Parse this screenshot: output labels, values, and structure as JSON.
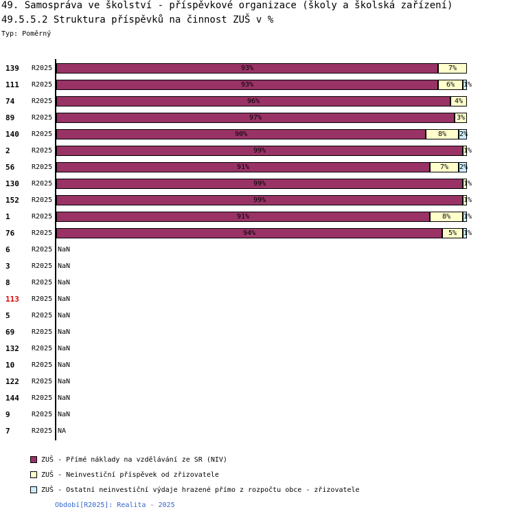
{
  "header": {
    "title1": "49. Samospráva ve školství - příspěvkové organizace (školy a školská zařízení)",
    "title2": "49.5.5.2 Struktura příspěvků na činnost ZUŠ v %",
    "type_label": "Typ: Poměrný"
  },
  "chart_data": {
    "type": "bar",
    "orientation": "horizontal",
    "stacked": true,
    "normalized_percent": true,
    "title": "49.5.5.2 Struktura příspěvků na činnost ZUŠ v %",
    "xlim": [
      0,
      100
    ],
    "period": "R2025",
    "series": [
      {
        "name": "ZUŠ - Přímé náklady na vzdělávání ze SR (NIV)",
        "color": "#993366"
      },
      {
        "name": "ZUŠ - Neinvestiční příspěvek od zřizovatele",
        "color": "#ffffcc"
      },
      {
        "name": "ZUŠ - Ostatní neinvestiční výdaje hrazené přímo z rozpočtu obce - zřizovatele",
        "color": "#cceeff"
      }
    ],
    "rows": [
      {
        "label": "139",
        "period": "R2025",
        "values": [
          93,
          7,
          0
        ],
        "value_labels": [
          "93%",
          "7%",
          ""
        ]
      },
      {
        "label": "111",
        "period": "R2025",
        "values": [
          93,
          6,
          1
        ],
        "value_labels": [
          "93%",
          "6%",
          "1%"
        ]
      },
      {
        "label": "74",
        "period": "R2025",
        "values": [
          96,
          4,
          0
        ],
        "value_labels": [
          "96%",
          "4%",
          ""
        ]
      },
      {
        "label": "89",
        "period": "R2025",
        "values": [
          97,
          3,
          0
        ],
        "value_labels": [
          "97%",
          "3%",
          ""
        ]
      },
      {
        "label": "140",
        "period": "R2025",
        "values": [
          90,
          8,
          2
        ],
        "value_labels": [
          "90%",
          "8%",
          "2%"
        ]
      },
      {
        "label": "2",
        "period": "R2025",
        "values": [
          99,
          1,
          0
        ],
        "value_labels": [
          "99%",
          "1%",
          ""
        ]
      },
      {
        "label": "56",
        "period": "R2025",
        "values": [
          91,
          7,
          2
        ],
        "value_labels": [
          "91%",
          "7%",
          "2%"
        ]
      },
      {
        "label": "130",
        "period": "R2025",
        "values": [
          99,
          1,
          0
        ],
        "value_labels": [
          "99%",
          "1%",
          ""
        ]
      },
      {
        "label": "152",
        "period": "R2025",
        "values": [
          99,
          1,
          0
        ],
        "value_labels": [
          "99%",
          "1%",
          ""
        ]
      },
      {
        "label": "1",
        "period": "R2025",
        "values": [
          91,
          8,
          1
        ],
        "value_labels": [
          "91%",
          "8%",
          "1%"
        ]
      },
      {
        "label": "76",
        "period": "R2025",
        "values": [
          94,
          5,
          1
        ],
        "value_labels": [
          "94%",
          "5%",
          "1%"
        ]
      },
      {
        "label": "6",
        "period": "R2025",
        "text": "NaN"
      },
      {
        "label": "3",
        "period": "R2025",
        "text": "NaN"
      },
      {
        "label": "8",
        "period": "R2025",
        "text": "NaN"
      },
      {
        "label": "113",
        "period": "R2025",
        "text": "NaN",
        "highlight": true
      },
      {
        "label": "5",
        "period": "R2025",
        "text": "NaN"
      },
      {
        "label": "69",
        "period": "R2025",
        "text": "NaN"
      },
      {
        "label": "132",
        "period": "R2025",
        "text": "NaN"
      },
      {
        "label": "10",
        "period": "R2025",
        "text": "NaN"
      },
      {
        "label": "122",
        "period": "R2025",
        "text": "NaN"
      },
      {
        "label": "144",
        "period": "R2025",
        "text": "NaN"
      },
      {
        "label": "9",
        "period": "R2025",
        "text": "NaN"
      },
      {
        "label": "7",
        "period": "R2025",
        "text": "NA"
      }
    ]
  },
  "footer": {
    "text": "Období[R2025]: Realita - 2025"
  },
  "colors": {
    "highlight_label": "#e00000",
    "footer_link": "#3366cc"
  }
}
